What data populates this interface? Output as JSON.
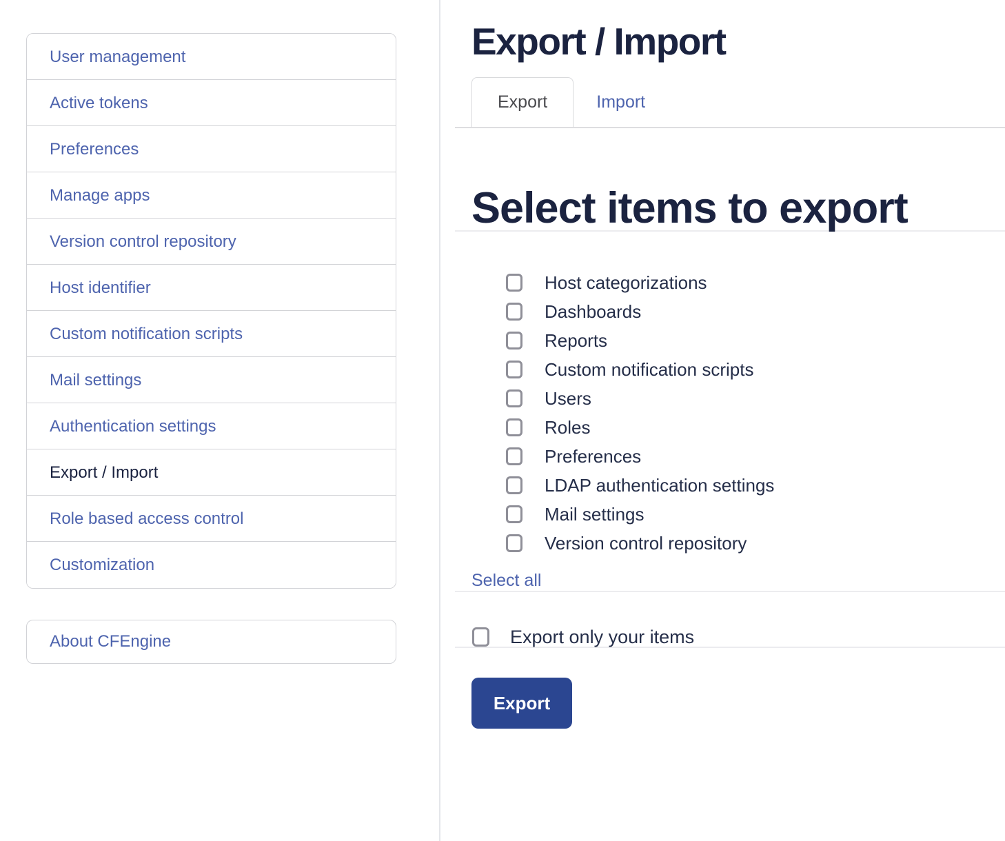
{
  "sidebar": {
    "items": [
      {
        "label": "User management",
        "active": false
      },
      {
        "label": "Active tokens",
        "active": false
      },
      {
        "label": "Preferences",
        "active": false
      },
      {
        "label": "Manage apps",
        "active": false
      },
      {
        "label": "Version control repository",
        "active": false
      },
      {
        "label": "Host identifier",
        "active": false
      },
      {
        "label": "Custom notification scripts",
        "active": false
      },
      {
        "label": "Mail settings",
        "active": false
      },
      {
        "label": "Authentication settings",
        "active": false
      },
      {
        "label": "Export / Import",
        "active": true
      },
      {
        "label": "Role based access control",
        "active": false
      },
      {
        "label": "Customization",
        "active": false
      }
    ],
    "about_label": "About CFEngine"
  },
  "main": {
    "title": "Export / Import",
    "tabs": [
      {
        "label": "Export",
        "active": true
      },
      {
        "label": "Import",
        "active": false
      }
    ],
    "section_heading": "Select items to export",
    "export_items": [
      "Host categorizations",
      "Dashboards",
      "Reports",
      "Custom notification scripts",
      "Users",
      "Roles",
      "Preferences",
      "LDAP authentication settings",
      "Mail settings",
      "Version control repository"
    ],
    "select_all_label": "Select all",
    "only_your_items_label": "Export only your items",
    "export_button_label": "Export",
    "checkboxes_checked": false
  },
  "colors": {
    "link_blue": "#4e64ae",
    "dark_navy": "#1b2340",
    "label_navy": "#252e49",
    "button_blue": "#2b4691",
    "box_border": "#d2d3d7",
    "divider_gray": "#ececef"
  }
}
